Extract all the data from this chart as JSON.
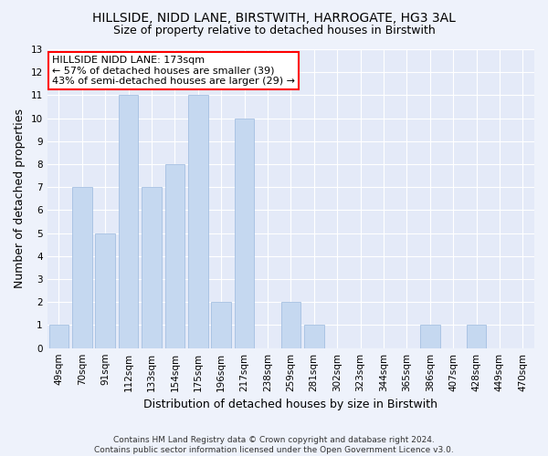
{
  "title": "HILLSIDE, NIDD LANE, BIRSTWITH, HARROGATE, HG3 3AL",
  "subtitle": "Size of property relative to detached houses in Birstwith",
  "xlabel": "Distribution of detached houses by size in Birstwith",
  "ylabel": "Number of detached properties",
  "categories": [
    "49sqm",
    "70sqm",
    "91sqm",
    "112sqm",
    "133sqm",
    "154sqm",
    "175sqm",
    "196sqm",
    "217sqm",
    "238sqm",
    "259sqm",
    "281sqm",
    "302sqm",
    "323sqm",
    "344sqm",
    "365sqm",
    "386sqm",
    "407sqm",
    "428sqm",
    "449sqm",
    "470sqm"
  ],
  "values": [
    1,
    7,
    5,
    11,
    7,
    8,
    11,
    2,
    10,
    0,
    2,
    1,
    0,
    0,
    0,
    0,
    1,
    0,
    1,
    0,
    0
  ],
  "bar_color": "#c5d8f0",
  "bar_edgecolor": "#9ab8de",
  "ylim": [
    0,
    13
  ],
  "yticks": [
    0,
    1,
    2,
    3,
    4,
    5,
    6,
    7,
    8,
    9,
    10,
    11,
    12,
    13
  ],
  "annotation_text_line1": "HILLSIDE NIDD LANE: 173sqm",
  "annotation_text_line2": "← 57% of detached houses are smaller (39)",
  "annotation_text_line3": "43% of semi-detached houses are larger (29) →",
  "footer": "Contains HM Land Registry data © Crown copyright and database right 2024.\nContains public sector information licensed under the Open Government Licence v3.0.",
  "background_color": "#eef2fb",
  "plot_background_color": "#e4eaf8",
  "grid_color": "#ffffff",
  "title_fontsize": 10,
  "subtitle_fontsize": 9,
  "axis_label_fontsize": 9,
  "tick_fontsize": 7.5,
  "footer_fontsize": 6.5,
  "annot_fontsize": 8
}
